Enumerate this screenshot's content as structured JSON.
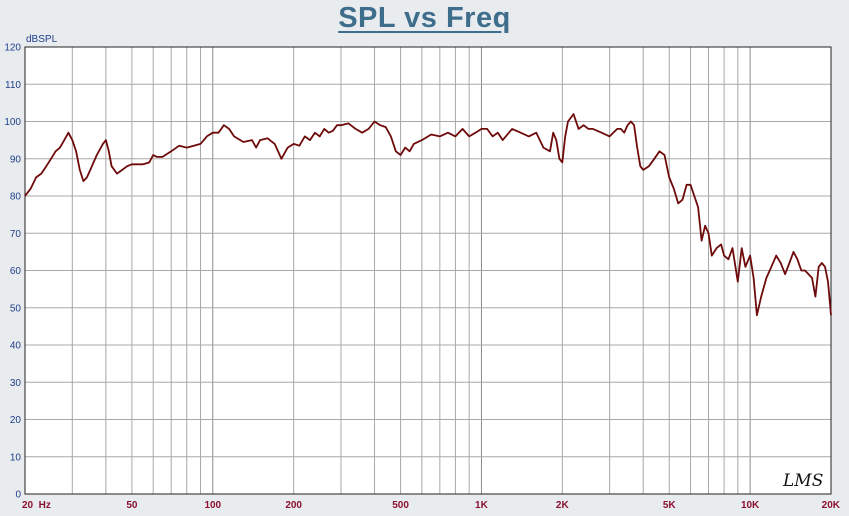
{
  "chart_data": {
    "type": "line",
    "title": "SPL vs Freq",
    "ylabel": "dBSPL",
    "xlabel": "",
    "x_scale": "log",
    "xlim": [
      20,
      20000
    ],
    "ylim": [
      0,
      120
    ],
    "grid": true,
    "y_ticks": [
      0,
      10,
      20,
      30,
      40,
      50,
      60,
      70,
      80,
      90,
      100,
      110,
      120
    ],
    "x_ticks": [
      {
        "value": 20,
        "label": "20  Hz"
      },
      {
        "value": 50,
        "label": "50"
      },
      {
        "value": 100,
        "label": "100"
      },
      {
        "value": 200,
        "label": "200"
      },
      {
        "value": 500,
        "label": "500"
      },
      {
        "value": 1000,
        "label": "1K"
      },
      {
        "value": 2000,
        "label": "2K"
      },
      {
        "value": 5000,
        "label": "5K"
      },
      {
        "value": 10000,
        "label": "10K"
      },
      {
        "value": 20000,
        "label": "20K"
      }
    ],
    "annotation": "LMS",
    "series": [
      {
        "color": "#6e0a0a",
        "x": [
          20,
          21,
          22,
          23,
          24,
          25,
          26,
          27,
          28,
          29,
          30,
          31,
          32,
          33,
          34,
          35,
          37,
          39,
          40,
          41,
          42,
          44,
          46,
          48,
          50,
          55,
          58,
          60,
          62,
          65,
          70,
          75,
          80,
          85,
          90,
          95,
          100,
          105,
          110,
          115,
          120,
          130,
          140,
          145,
          150,
          160,
          170,
          180,
          190,
          200,
          210,
          220,
          230,
          240,
          250,
          260,
          270,
          280,
          290,
          300,
          320,
          340,
          360,
          380,
          400,
          420,
          440,
          460,
          480,
          500,
          520,
          540,
          560,
          600,
          650,
          700,
          750,
          800,
          850,
          900,
          950,
          1000,
          1050,
          1100,
          1150,
          1200,
          1300,
          1400,
          1500,
          1600,
          1700,
          1800,
          1850,
          1900,
          1950,
          2000,
          2050,
          2100,
          2200,
          2300,
          2400,
          2500,
          2600,
          2800,
          3000,
          3200,
          3300,
          3400,
          3500,
          3600,
          3700,
          3800,
          3900,
          4000,
          4200,
          4400,
          4600,
          4800,
          5000,
          5200,
          5400,
          5600,
          5800,
          6000,
          6200,
          6400,
          6600,
          6800,
          7000,
          7200,
          7500,
          7800,
          8000,
          8300,
          8600,
          9000,
          9300,
          9600,
          10000,
          10300,
          10600,
          11000,
          11500,
          12000,
          12500,
          13000,
          13500,
          14000,
          14500,
          15000,
          15500,
          16000,
          17000,
          17500,
          18000,
          18500,
          19000,
          19500,
          20000
        ],
        "y": [
          80,
          82,
          85,
          86,
          88,
          90,
          92,
          93,
          95,
          97,
          95,
          92,
          87,
          84,
          85,
          87,
          91,
          94,
          95,
          92,
          88,
          86,
          87,
          88,
          88.5,
          88.5,
          89,
          91,
          90.5,
          90.5,
          92,
          93.5,
          93,
          93.5,
          94,
          96,
          97,
          97,
          99,
          98,
          96,
          94.5,
          95,
          93,
          95,
          95.5,
          94,
          90,
          93,
          94,
          93.5,
          96,
          95,
          97,
          96,
          98,
          97,
          97.5,
          99,
          99,
          99.5,
          98,
          97,
          98,
          100,
          99,
          98.5,
          96,
          92,
          91,
          93,
          92,
          94,
          95,
          96.5,
          96,
          97,
          96,
          98,
          96,
          97,
          98,
          98,
          96,
          97,
          95,
          98,
          97,
          96,
          97,
          93,
          92,
          97,
          95,
          90,
          89,
          96,
          100,
          102,
          98,
          99,
          98,
          98,
          97,
          96,
          98,
          98,
          97,
          99,
          100,
          99,
          93,
          88,
          87,
          88,
          90,
          92,
          91,
          85,
          82,
          78,
          79,
          83,
          83,
          80,
          77,
          68,
          72,
          70,
          64,
          66,
          67,
          64,
          63,
          66,
          57,
          66,
          61,
          64,
          58,
          48,
          53,
          58,
          61,
          64,
          62,
          59,
          62,
          65,
          63,
          60,
          60,
          58,
          53,
          61,
          62,
          61,
          57,
          48
        ]
      }
    ]
  }
}
